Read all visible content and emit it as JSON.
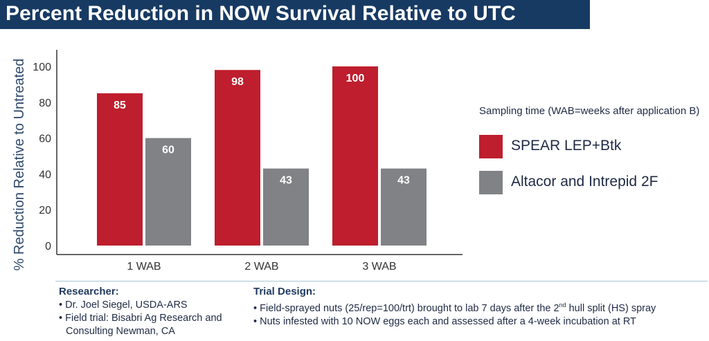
{
  "title": "Percent Reduction in NOW Survival Relative to UTC",
  "colors": {
    "title_bg": "#173a63",
    "series_a": "#be1e2d",
    "series_b": "#808285"
  },
  "chart_data": {
    "type": "bar",
    "categories": [
      "1 WAB",
      "2 WAB",
      "3 WAB"
    ],
    "series": [
      {
        "name": "SPEAR LEP+Btk",
        "values": [
          85,
          98,
          100
        ]
      },
      {
        "name": "Altacor and Intrepid 2F",
        "values": [
          60,
          43,
          43
        ]
      }
    ],
    "ylabel": "% Reduction Relative to Untreated",
    "ylim": [
      0,
      100
    ],
    "yticks": [
      0,
      20,
      40,
      60,
      80,
      100
    ],
    "grid": false,
    "legend_title": "Sampling time (WAB=weeks after application B)",
    "legend_position": "right"
  },
  "notes": {
    "researcher": {
      "heading": "Researcher:",
      "items": [
        "Dr. Joel Siegel, USDA-ARS",
        "Field trial: Bisabri Ag Research and Consulting Newman, CA"
      ]
    },
    "trial_design": {
      "heading": "Trial Design:",
      "item1_before": "Field-sprayed nuts (25/rep=100/trt) brought to lab 7 days after the 2",
      "item1_sup": "nd",
      "item1_after": " hull split (HS) spray",
      "item2": "Nuts infested with 10 NOW eggs each and assessed after a 4-week incubation at RT"
    }
  }
}
